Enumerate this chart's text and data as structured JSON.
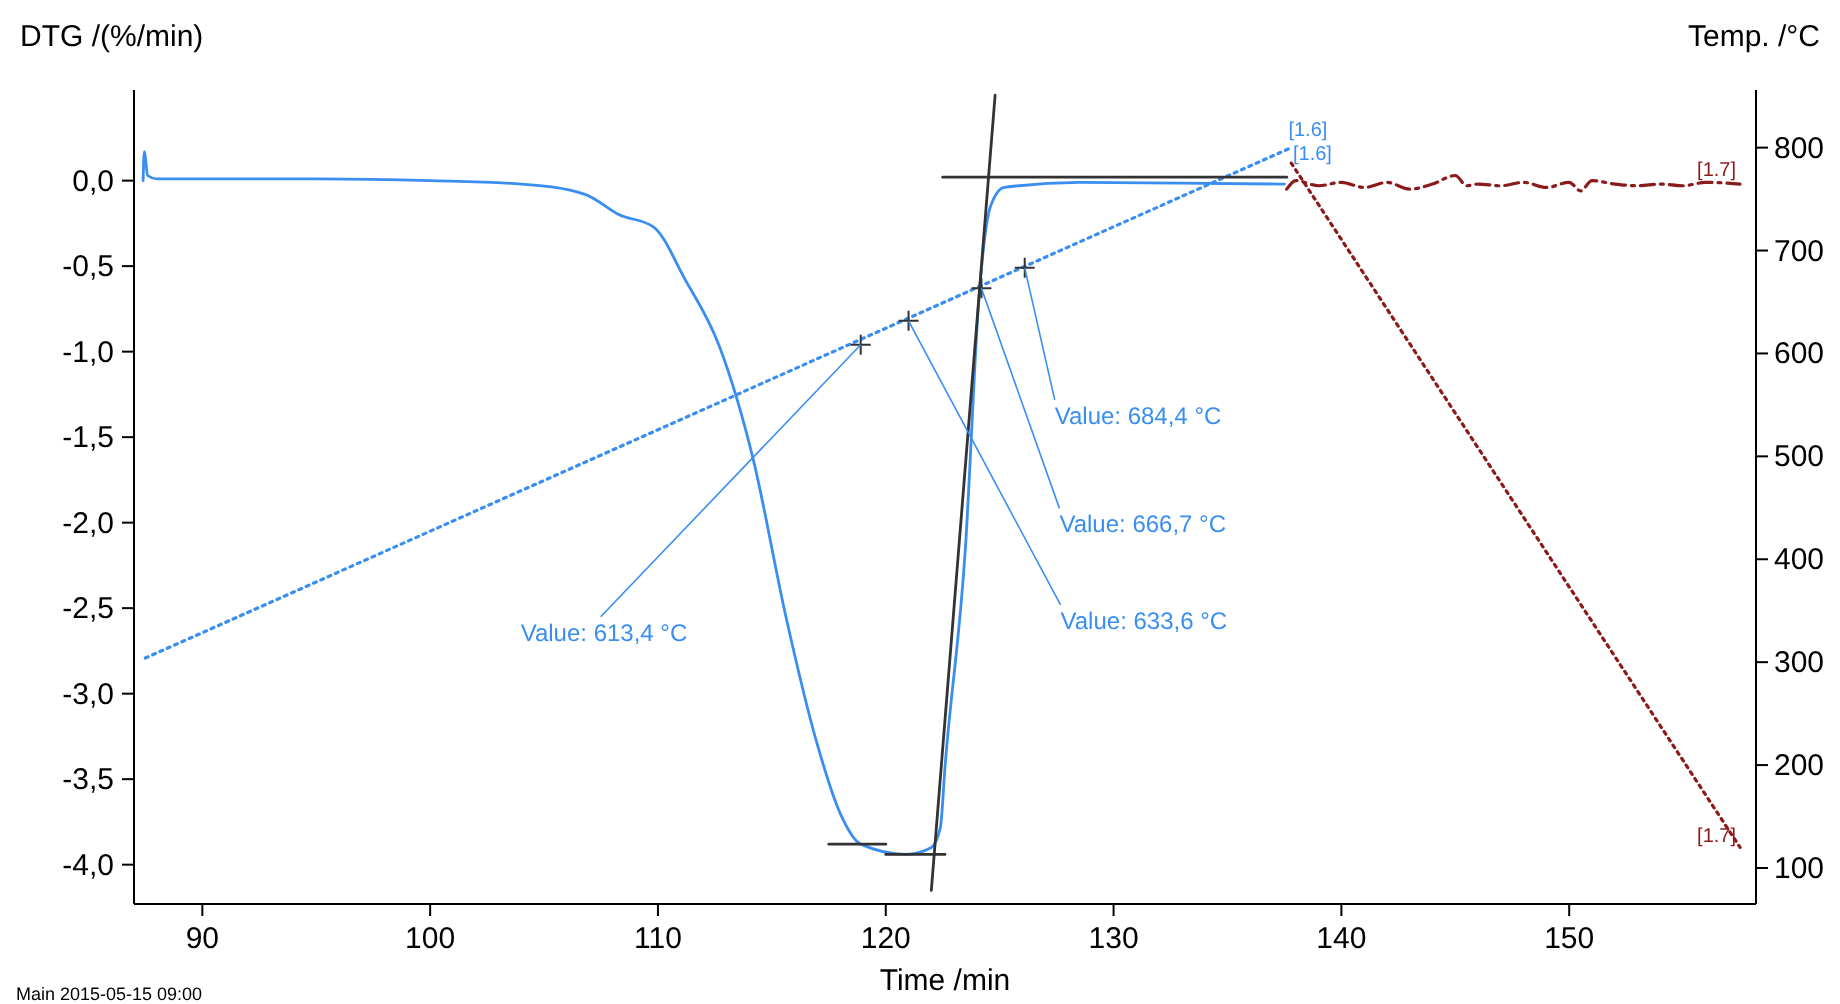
{
  "chart_data": {
    "type": "line",
    "xlabel": "Time /min",
    "ylabel": "DTG /(%/min)",
    "y2label": "Temp. /°C",
    "xlim": [
      87,
      158.2
    ],
    "xticks": [
      90,
      100,
      110,
      120,
      130,
      140,
      150
    ],
    "ylim": [
      -4.23,
      0.53
    ],
    "yticks": [
      {
        "value": 0,
        "label": "0,0"
      },
      {
        "value": -0.5,
        "label": "-0,5"
      },
      {
        "value": -1,
        "label": "-1,0"
      },
      {
        "value": -1.5,
        "label": "-1,5"
      },
      {
        "value": -2,
        "label": "-2,0"
      },
      {
        "value": -2.5,
        "label": "-2,5"
      },
      {
        "value": -3,
        "label": "-3,0"
      },
      {
        "value": -3.5,
        "label": "-3,5"
      },
      {
        "value": -4,
        "label": "-4,0"
      }
    ],
    "y2lim": [
      65,
      856
    ],
    "y2ticks": [
      100,
      200,
      300,
      400,
      500,
      600,
      700,
      800
    ],
    "grid": false,
    "series": [
      {
        "color": "#3a8ef0",
        "line_style": "solid",
        "x": [
          87.4,
          87.45,
          87.6,
          88,
          90,
          95,
          100,
          104,
          106.8,
          108.3,
          109.8,
          111.2,
          112.7,
          114.2,
          115.6,
          117,
          118,
          118.9,
          120.9,
          122,
          122.4,
          122.6,
          123.5,
          124.1,
          124.6,
          125.2,
          128.5,
          137.3,
          137.5
        ],
        "values": [
          0,
          0.17,
          0.03,
          0.01,
          0.01,
          0.01,
          0,
          -0.02,
          -0.08,
          -0.2,
          -0.27,
          -0.58,
          -0.97,
          -1.64,
          -2.54,
          -3.3,
          -3.7,
          -3.88,
          -3.94,
          -3.9,
          -3.78,
          -3.43,
          -2.14,
          -0.67,
          -0.15,
          -0.04,
          -0.01,
          -0.02,
          -0.02
        ]
      },
      {
        "type": "line",
        "color": "#3a8ef0",
        "line_style": "dotted",
        "axis": "y2",
        "x": [
          87.5,
          137.7
        ],
        "values": [
          304,
          799
        ]
      },
      {
        "type": "line",
        "color": "#8b1a1a",
        "line_style": "dashdot",
        "x": [
          137.6,
          138,
          139,
          140,
          141,
          142,
          143,
          144,
          145,
          145.5,
          146,
          147,
          148,
          149,
          150,
          150.5,
          151,
          152,
          153,
          154,
          155,
          156,
          157.5
        ],
        "values": [
          -0.05,
          0,
          -0.03,
          -0.01,
          -0.04,
          -0.01,
          -0.05,
          -0.02,
          0.03,
          -0.03,
          -0.02,
          -0.03,
          -0.01,
          -0.04,
          -0.01,
          -0.06,
          0,
          -0.02,
          -0.03,
          -0.02,
          -0.03,
          -0.01,
          -0.02
        ]
      },
      {
        "type": "line",
        "color": "#8b1a1a",
        "line_style": "dotted",
        "axis": "y2",
        "x": [
          137.8,
          157.5
        ],
        "values": [
          785,
          120
        ]
      },
      {
        "type": "line",
        "color": "#333333",
        "line_style": "solid",
        "x": [
          122.5,
          137.6
        ],
        "values": [
          0.02,
          0.02
        ]
      },
      {
        "type": "line",
        "color": "#333333",
        "line_style": "solid",
        "x": [
          122,
          124.8
        ],
        "values": [
          -4.15,
          0.5
        ]
      },
      {
        "type": "line",
        "color": "#333333",
        "line_style": "solid",
        "x": [
          117.5,
          120
        ],
        "values": [
          -3.88,
          -3.88
        ]
      },
      {
        "type": "line",
        "color": "#333333",
        "line_style": "solid",
        "x": [
          120,
          122.6
        ],
        "values": [
          -3.94,
          -3.94
        ]
      },
      {
        "type": "scatter",
        "color": "#333333",
        "marker": "cross",
        "x": [
          118.9,
          121,
          124.2,
          126.1
        ],
        "values": [
          -0.96,
          -0.82,
          -0.63,
          -0.51
        ]
      }
    ],
    "annotations": [
      {
        "text": "Value: 613,4 °C",
        "x": 118.9,
        "y": -0.96
      },
      {
        "text": "Value: 633,6 °C",
        "x": 121,
        "y": -0.82
      },
      {
        "text": "Value: 666,7 °C",
        "x": 124.2,
        "y": -0.63
      },
      {
        "text": "Value: 684,4 °C",
        "x": 126.1,
        "y": -0.51
      },
      {
        "text": "[1.6]",
        "x": 137.5,
        "y": -0.02
      },
      {
        "text": "[1.6]",
        "x": 137.7,
        "y": 0.12
      },
      {
        "text": "[1.7]",
        "x": 157.5,
        "y": -0.02
      },
      {
        "text": "[1.7]",
        "x": 157.5,
        "y": -3.87
      },
      "Main   2015-05-15 09:00"
    ]
  }
}
